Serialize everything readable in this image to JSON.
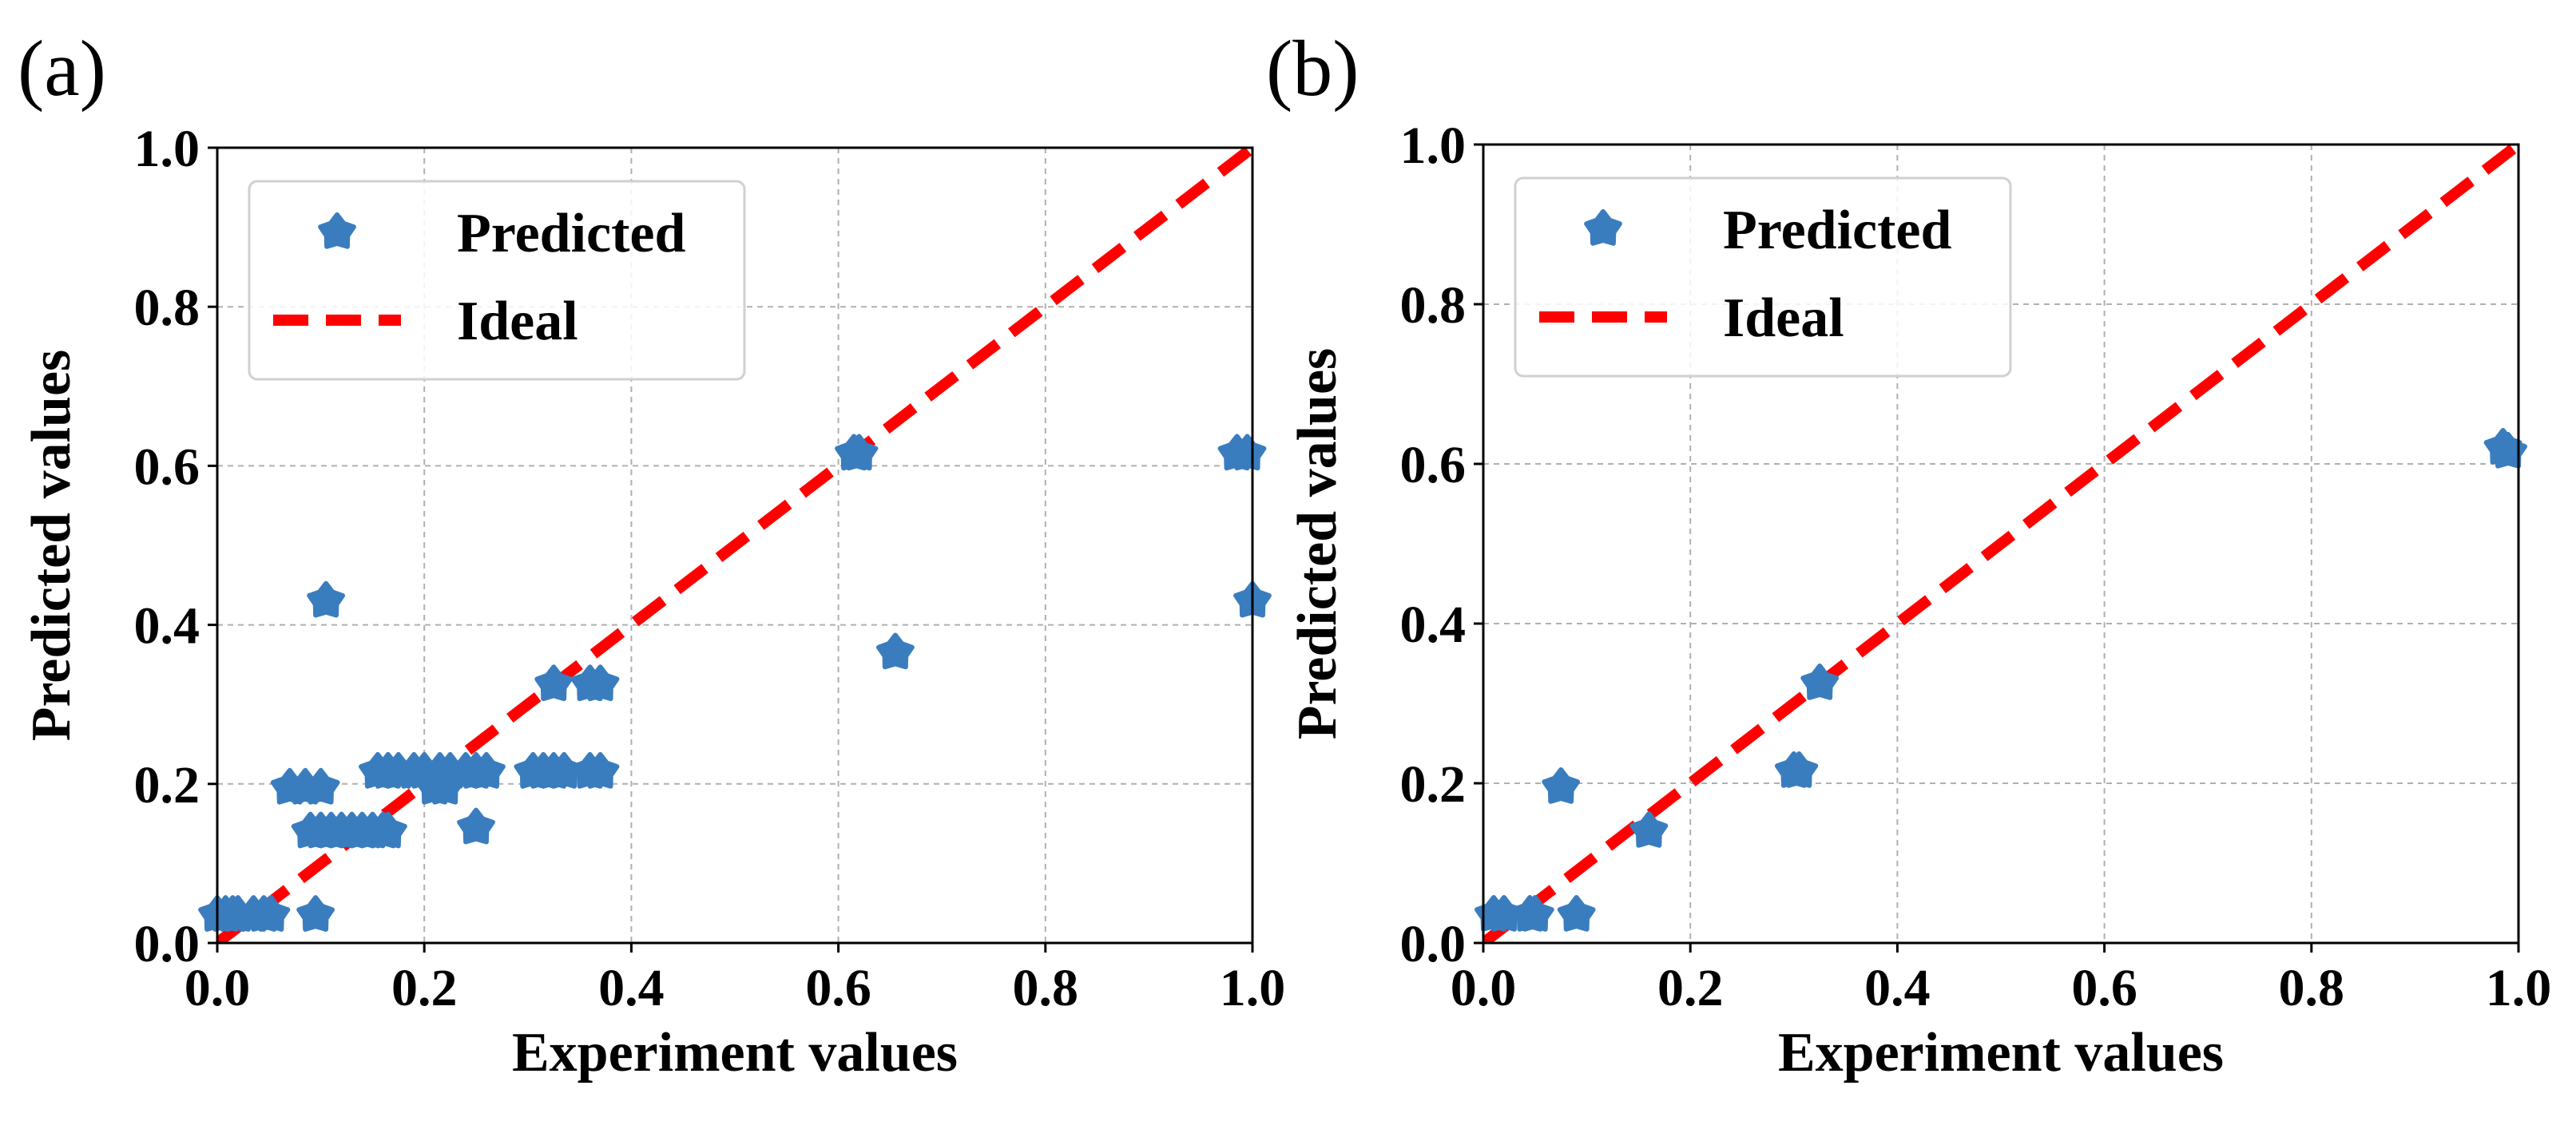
{
  "colors": {
    "predicted": "#3a7dbf",
    "ideal": "#ff0000",
    "grid": "#b0b0b0",
    "axis": "#000000"
  },
  "chart_data": [
    {
      "type": "scatter",
      "panel_label": "(a)",
      "xlabel": "Experiment values",
      "ylabel": "Predicted values",
      "xlim": [
        0,
        1
      ],
      "ylim": [
        0,
        1
      ],
      "xticks": [
        "0.0",
        "0.2",
        "0.4",
        "0.6",
        "0.8",
        "1.0"
      ],
      "yticks": [
        "0.0",
        "0.2",
        "0.4",
        "0.6",
        "0.8",
        "1.0"
      ],
      "grid": true,
      "legend_position": "upper-left",
      "legend": [
        {
          "label": "Predicted",
          "marker": "pentagon-star",
          "color": "#3a7dbf"
        },
        {
          "label": "Ideal",
          "style": "dashed",
          "color": "#ff0000"
        }
      ],
      "ideal_line": [
        [
          0,
          0
        ],
        [
          1,
          1
        ]
      ],
      "series": [
        {
          "name": "Predicted",
          "points": [
            [
              0.0,
              0.035
            ],
            [
              0.008,
              0.035
            ],
            [
              0.015,
              0.035
            ],
            [
              0.02,
              0.035
            ],
            [
              0.035,
              0.035
            ],
            [
              0.045,
              0.035
            ],
            [
              0.052,
              0.035
            ],
            [
              0.095,
              0.035
            ],
            [
              0.07,
              0.195
            ],
            [
              0.085,
              0.195
            ],
            [
              0.1,
              0.195
            ],
            [
              0.09,
              0.14
            ],
            [
              0.1,
              0.14
            ],
            [
              0.11,
              0.14
            ],
            [
              0.12,
              0.14
            ],
            [
              0.13,
              0.14
            ],
            [
              0.14,
              0.14
            ],
            [
              0.15,
              0.14
            ],
            [
              0.16,
              0.14
            ],
            [
              0.165,
              0.14
            ],
            [
              0.105,
              0.43
            ],
            [
              0.155,
              0.215
            ],
            [
              0.165,
              0.215
            ],
            [
              0.175,
              0.215
            ],
            [
              0.19,
              0.215
            ],
            [
              0.2,
              0.215
            ],
            [
              0.215,
              0.215
            ],
            [
              0.225,
              0.215
            ],
            [
              0.24,
              0.215
            ],
            [
              0.25,
              0.215
            ],
            [
              0.26,
              0.215
            ],
            [
              0.21,
              0.195
            ],
            [
              0.22,
              0.195
            ],
            [
              0.25,
              0.145
            ],
            [
              0.305,
              0.215
            ],
            [
              0.315,
              0.215
            ],
            [
              0.325,
              0.215
            ],
            [
              0.335,
              0.215
            ],
            [
              0.36,
              0.215
            ],
            [
              0.37,
              0.215
            ],
            [
              0.325,
              0.325
            ],
            [
              0.36,
              0.325
            ],
            [
              0.37,
              0.325
            ],
            [
              0.615,
              0.615
            ],
            [
              0.62,
              0.615
            ],
            [
              0.655,
              0.365
            ],
            [
              0.985,
              0.615
            ],
            [
              0.995,
              0.615
            ],
            [
              1.0,
              0.43
            ]
          ]
        }
      ]
    },
    {
      "type": "scatter",
      "panel_label": "(b)",
      "xlabel": "Experiment values",
      "ylabel": "Predicted values",
      "xlim": [
        0,
        1
      ],
      "ylim": [
        0,
        1
      ],
      "xticks": [
        "0.0",
        "0.2",
        "0.4",
        "0.6",
        "0.8",
        "1.0"
      ],
      "yticks": [
        "0.0",
        "0.2",
        "0.4",
        "0.6",
        "0.8",
        "1.0"
      ],
      "grid": true,
      "legend_position": "upper-left",
      "legend": [
        {
          "label": "Predicted",
          "marker": "pentagon-star",
          "color": "#3a7dbf"
        },
        {
          "label": "Ideal",
          "style": "dashed",
          "color": "#ff0000"
        }
      ],
      "ideal_line": [
        [
          0,
          0
        ],
        [
          1,
          1
        ]
      ],
      "series": [
        {
          "name": "Predicted",
          "points": [
            [
              0.01,
              0.035
            ],
            [
              0.02,
              0.035
            ],
            [
              0.045,
              0.035
            ],
            [
              0.05,
              0.035
            ],
            [
              0.09,
              0.035
            ],
            [
              0.075,
              0.195
            ],
            [
              0.16,
              0.14
            ],
            [
              0.3,
              0.215
            ],
            [
              0.305,
              0.215
            ],
            [
              0.325,
              0.325
            ],
            [
              0.985,
              0.62
            ],
            [
              0.99,
              0.615
            ]
          ]
        }
      ]
    }
  ]
}
